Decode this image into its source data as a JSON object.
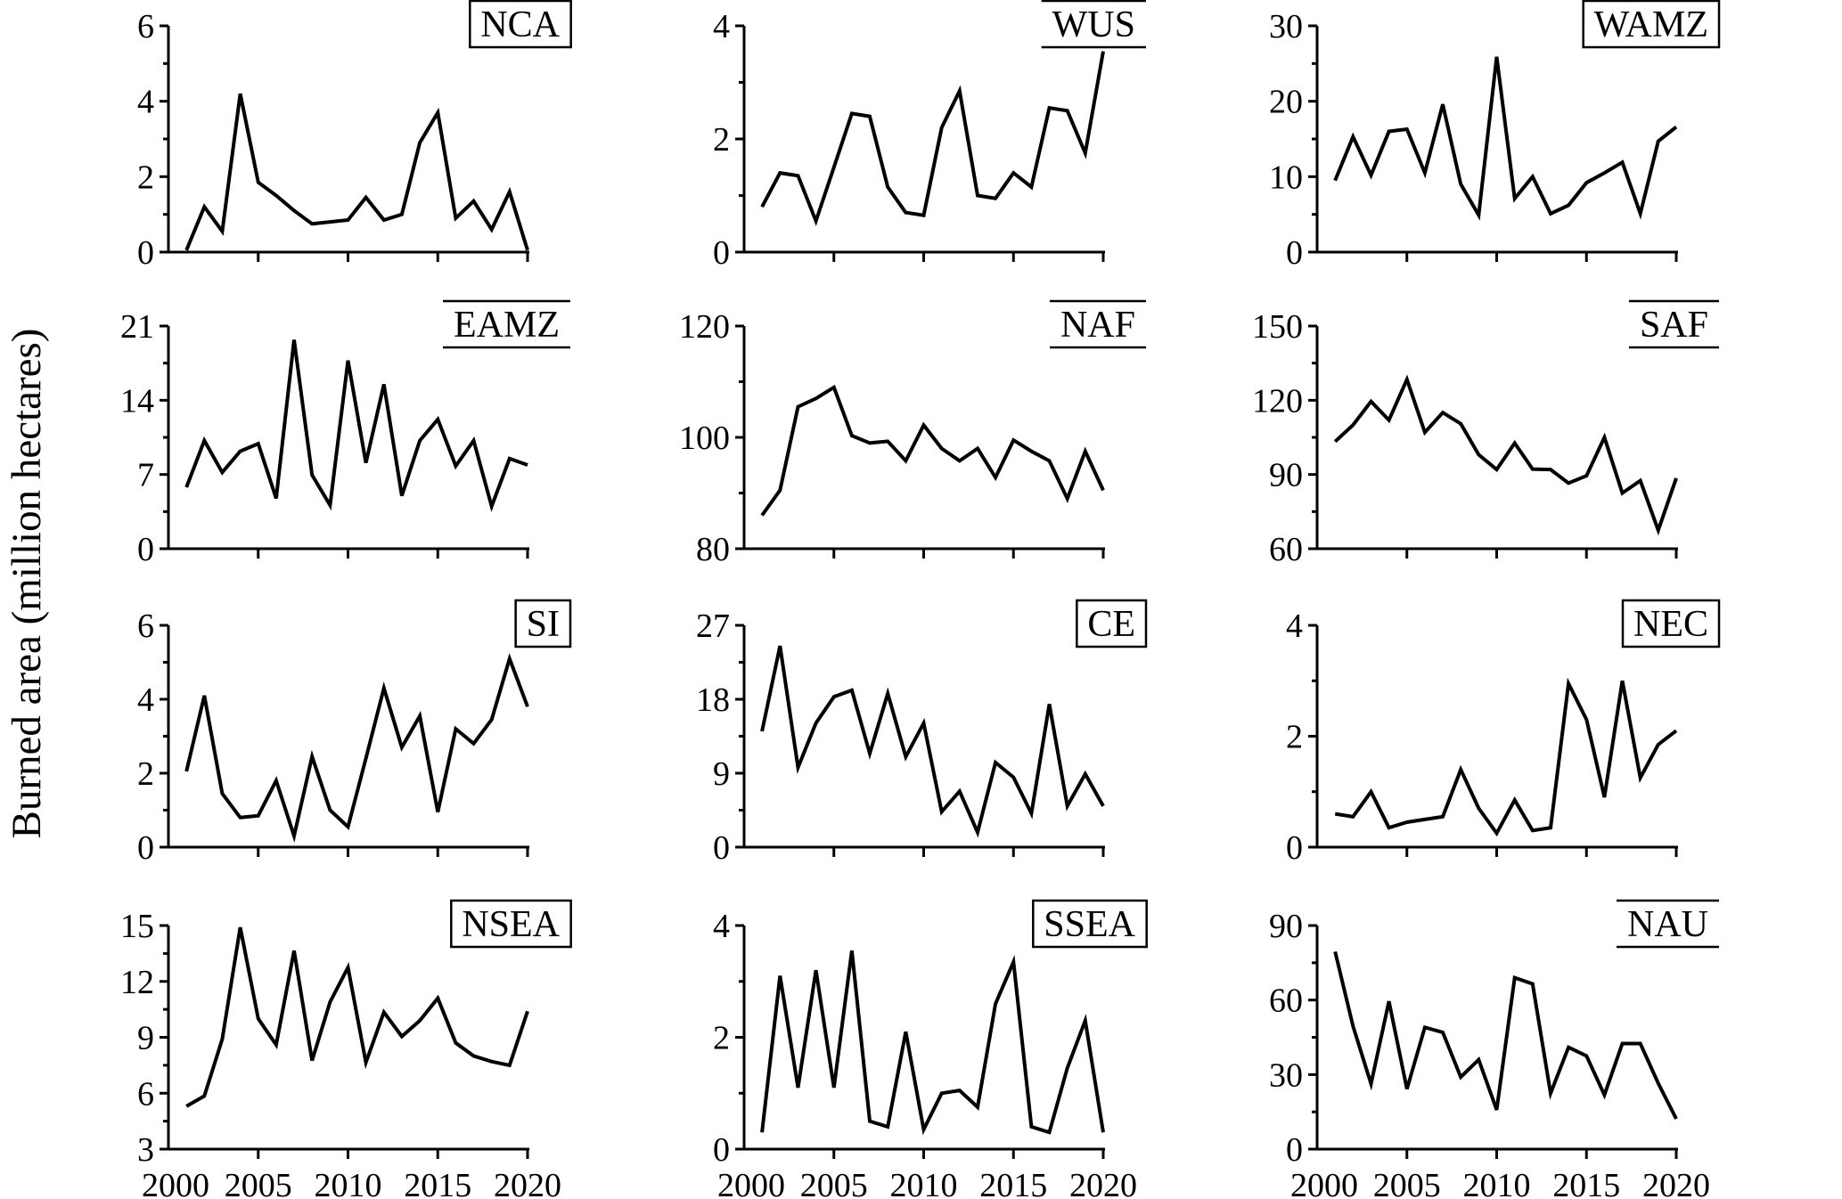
{
  "figure": {
    "ylabel": "Burned area (million hectares)",
    "background_color": "#ffffff",
    "line_color": "#000000",
    "x_axis_tick_labels": [
      "2000",
      "2005",
      "2010",
      "2015",
      "2020"
    ]
  },
  "chart_data": [
    {
      "type": "line",
      "title": "NCA",
      "label_style": "box",
      "xlim": [
        2000,
        2020
      ],
      "x_start_year": 2001,
      "ylim": [
        0,
        6
      ],
      "yticks": [
        0,
        2,
        4,
        6
      ],
      "xticks": [
        2005,
        2010,
        2015,
        2020
      ],
      "grid": false,
      "values": [
        0.05,
        1.2,
        0.55,
        4.2,
        1.85,
        1.5,
        1.1,
        0.75,
        0.8,
        0.85,
        1.45,
        0.85,
        1.0,
        2.9,
        3.7,
        0.9,
        1.35,
        0.6,
        1.6,
        0.05
      ]
    },
    {
      "type": "line",
      "title": "WUS",
      "label_style": "lines",
      "xlim": [
        2000,
        2020
      ],
      "x_start_year": 2001,
      "ylim": [
        0,
        4
      ],
      "yticks": [
        0,
        2,
        4
      ],
      "xticks": [
        2005,
        2010,
        2015,
        2020
      ],
      "grid": false,
      "values": [
        0.8,
        1.4,
        1.35,
        0.55,
        1.5,
        2.45,
        2.4,
        1.15,
        0.7,
        0.65,
        2.2,
        2.85,
        1.0,
        0.95,
        1.4,
        1.15,
        2.55,
        2.5,
        1.75,
        3.55
      ]
    },
    {
      "type": "line",
      "title": "WAMZ",
      "label_style": "box",
      "xlim": [
        2000,
        2020
      ],
      "x_start_year": 2001,
      "ylim": [
        0,
        30
      ],
      "yticks": [
        0,
        10,
        20,
        30
      ],
      "xticks": [
        2005,
        2010,
        2015,
        2020
      ],
      "grid": false,
      "values": [
        9.5,
        15.3,
        10.2,
        16.0,
        16.3,
        10.5,
        19.6,
        9.0,
        4.9,
        25.9,
        7.1,
        10.0,
        5.1,
        6.2,
        9.2,
        10.5,
        11.9,
        5.1,
        14.7,
        16.6
      ]
    },
    {
      "type": "line",
      "title": "EAMZ",
      "label_style": "lines",
      "xlim": [
        2000,
        2020
      ],
      "x_start_year": 2001,
      "ylim": [
        0,
        21
      ],
      "yticks": [
        0,
        7,
        14,
        21
      ],
      "xticks": [
        2005,
        2010,
        2015,
        2020
      ],
      "grid": false,
      "values": [
        5.8,
        10.2,
        7.2,
        9.2,
        9.9,
        4.75,
        19.7,
        6.95,
        4.1,
        17.75,
        8.1,
        15.5,
        5.0,
        10.2,
        12.2,
        7.8,
        10.2,
        4.0,
        8.5,
        7.9
      ]
    },
    {
      "type": "line",
      "title": "NAF",
      "label_style": "lines",
      "xlim": [
        2000,
        2020
      ],
      "x_start_year": 2001,
      "ylim": [
        80,
        120
      ],
      "yticks": [
        80,
        100,
        120
      ],
      "xticks": [
        2005,
        2010,
        2015,
        2020
      ],
      "grid": false,
      "values": [
        86,
        90.5,
        105.5,
        107,
        109,
        100.3,
        99,
        99.3,
        95.8,
        102.2,
        98,
        95.8,
        98,
        92.8,
        99.5,
        97.5,
        95.8,
        89,
        97.5,
        90.5
      ]
    },
    {
      "type": "line",
      "title": "SAF",
      "label_style": "lines",
      "xlim": [
        2000,
        2020
      ],
      "x_start_year": 2001,
      "ylim": [
        60,
        150
      ],
      "yticks": [
        60,
        90,
        120,
        150
      ],
      "xticks": [
        2005,
        2010,
        2015,
        2020
      ],
      "grid": false,
      "values": [
        103.3,
        110,
        119.5,
        112,
        128.4,
        107,
        115,
        110.5,
        98,
        92,
        102.7,
        92.2,
        92,
        86.5,
        89.5,
        105,
        82.5,
        87.5,
        67.5,
        88.5
      ]
    },
    {
      "type": "line",
      "title": "SI",
      "label_style": "box",
      "xlim": [
        2000,
        2020
      ],
      "x_start_year": 2001,
      "ylim": [
        0,
        6
      ],
      "yticks": [
        0,
        2,
        4,
        6
      ],
      "xticks": [
        2005,
        2010,
        2015,
        2020
      ],
      "grid": false,
      "values": [
        2.05,
        4.1,
        1.45,
        0.8,
        0.85,
        1.8,
        0.3,
        2.45,
        1.0,
        0.55,
        2.4,
        4.3,
        2.7,
        3.55,
        0.95,
        3.2,
        2.8,
        3.45,
        5.1,
        3.8
      ]
    },
    {
      "type": "line",
      "title": "CE",
      "label_style": "box",
      "xlim": [
        2000,
        2020
      ],
      "x_start_year": 2001,
      "ylim": [
        0,
        27
      ],
      "yticks": [
        0,
        9,
        18,
        27
      ],
      "xticks": [
        2005,
        2010,
        2015,
        2020
      ],
      "grid": false,
      "values": [
        14.1,
        24.5,
        9.7,
        15.1,
        18.3,
        19.1,
        11.4,
        18.7,
        11.0,
        15.1,
        4.3,
        6.8,
        1.8,
        10.3,
        8.5,
        4.1,
        17.4,
        5.0,
        8.9,
        5.0
      ]
    },
    {
      "type": "line",
      "title": "NEC",
      "label_style": "box",
      "xlim": [
        2000,
        2020
      ],
      "x_start_year": 2001,
      "ylim": [
        0,
        4
      ],
      "yticks": [
        0,
        2,
        4
      ],
      "xticks": [
        2005,
        2010,
        2015,
        2020
      ],
      "grid": false,
      "values": [
        0.6,
        0.55,
        1.0,
        0.35,
        0.45,
        0.5,
        0.55,
        1.4,
        0.7,
        0.25,
        0.85,
        0.3,
        0.35,
        2.95,
        2.3,
        0.9,
        3.0,
        1.25,
        1.85,
        2.1
      ]
    },
    {
      "type": "line",
      "title": "NSEA",
      "label_style": "box",
      "xlim": [
        2000,
        2020
      ],
      "x_start_year": 2001,
      "ylim": [
        3,
        15
      ],
      "yticks": [
        3,
        6,
        9,
        12,
        15
      ],
      "xticks": [
        2005,
        2010,
        2015,
        2020
      ],
      "grid": false,
      "values": [
        5.3,
        5.85,
        8.9,
        14.9,
        10.0,
        8.6,
        13.65,
        7.75,
        10.9,
        12.75,
        7.65,
        10.35,
        9.05,
        9.9,
        11.1,
        8.7,
        8.0,
        7.7,
        7.5,
        10.4
      ]
    },
    {
      "type": "line",
      "title": "SSEA",
      "label_style": "box",
      "xlim": [
        2000,
        2020
      ],
      "x_start_year": 2001,
      "ylim": [
        0,
        4
      ],
      "yticks": [
        0,
        2,
        4
      ],
      "xticks": [
        2005,
        2010,
        2015,
        2020
      ],
      "grid": false,
      "values": [
        0.3,
        3.1,
        1.1,
        3.2,
        1.1,
        3.55,
        0.5,
        0.4,
        2.1,
        0.35,
        1.0,
        1.05,
        0.75,
        2.6,
        3.35,
        0.4,
        0.3,
        1.45,
        2.3,
        0.3
      ]
    },
    {
      "type": "line",
      "title": "NAU",
      "label_style": "lines",
      "xlim": [
        2000,
        2020
      ],
      "x_start_year": 2001,
      "ylim": [
        0,
        90
      ],
      "yticks": [
        0,
        30,
        60,
        90
      ],
      "xticks": [
        2005,
        2010,
        2015,
        2020
      ],
      "grid": false,
      "values": [
        79.5,
        49.5,
        26.3,
        59.5,
        24.2,
        49.0,
        47.0,
        29.0,
        36.0,
        15.8,
        69.0,
        66.5,
        22.5,
        41.0,
        37.5,
        21.8,
        42.5,
        42.5,
        26.5,
        12.2
      ]
    }
  ]
}
